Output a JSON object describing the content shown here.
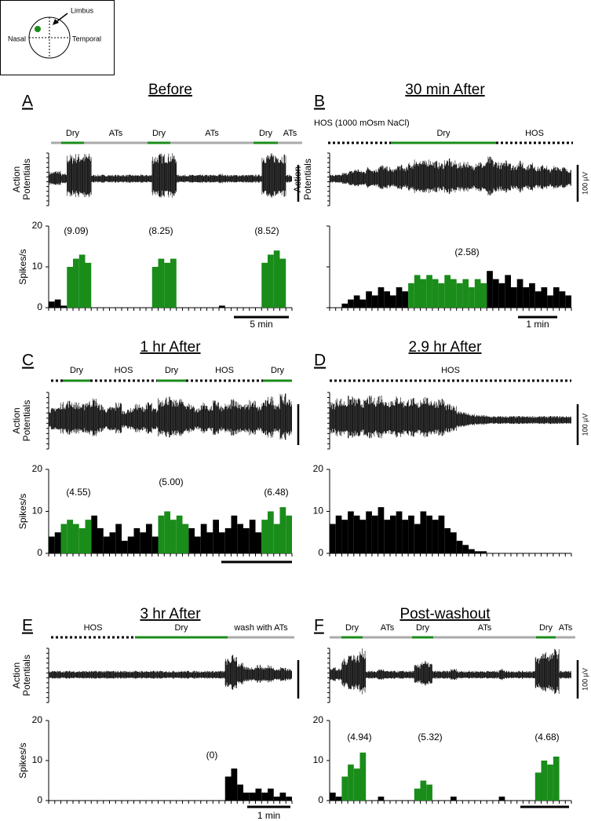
{
  "inset": {
    "labels": [
      "Limbus",
      "Nasal",
      "Temporal"
    ]
  },
  "chart_data": [
    {
      "type": "bar",
      "letter": "A",
      "title": "Before",
      "conditions": [
        {
          "label": null,
          "color": "#aaaaaa",
          "dashed": false
        },
        {
          "label": "Dry",
          "color": "#1a8c1a",
          "dashed": false
        },
        {
          "label": "ATs",
          "color": "#aaaaaa",
          "dashed": false
        },
        {
          "label": "Dry",
          "color": "#1a8c1a",
          "dashed": false
        },
        {
          "label": "ATs",
          "color": "#aaaaaa",
          "dashed": false
        },
        {
          "label": "Dry",
          "color": "#1a8c1a",
          "dashed": false
        },
        {
          "label": "ATs",
          "color": "#aaaaaa",
          "dashed": false
        }
      ],
      "trace_label": [
        "Action",
        "Potentials"
      ],
      "ylabel": "Spikes/s",
      "ylim": [
        0,
        20
      ],
      "yticks": [
        0,
        10,
        20
      ],
      "series": [
        {
          "color": "#000000",
          "values": [
            1.5,
            2,
            0.5,
            null,
            null,
            null,
            null,
            0,
            0,
            0,
            0,
            0,
            0,
            0,
            0,
            0,
            0,
            null,
            null,
            null,
            null,
            0,
            0,
            0,
            0,
            0,
            0,
            0,
            0.5,
            0,
            0,
            0,
            0,
            0,
            0,
            null,
            null,
            null,
            null,
            0
          ]
        },
        {
          "color": "#1a8c1a",
          "values": [
            null,
            null,
            null,
            10,
            12,
            13,
            11,
            null,
            null,
            null,
            null,
            null,
            null,
            null,
            null,
            null,
            null,
            10,
            12,
            11,
            12,
            null,
            null,
            null,
            null,
            null,
            null,
            null,
            null,
            null,
            null,
            null,
            null,
            null,
            null,
            11,
            13,
            14,
            12,
            null
          ]
        }
      ],
      "annotations": [
        "(9.09)",
        "(8.25)",
        "(8.52)"
      ],
      "scale_time": "5 min"
    },
    {
      "type": "bar",
      "letter": "B",
      "title": "30 min After",
      "subtitle": "HOS (1000 mOsm NaCl)",
      "conditions": [
        {
          "label": null,
          "color": "#000000",
          "dashed": true
        },
        {
          "label": "Dry",
          "color": "#1a8c1a",
          "dashed": false
        },
        {
          "label": "HOS",
          "color": "#000000",
          "dashed": true
        }
      ],
      "trace_label": [
        "Action",
        "Potentials"
      ],
      "ylabel": null,
      "ylim": [
        0,
        20
      ],
      "yticks": [
        null,
        null,
        null
      ],
      "series": [
        {
          "color": "#000000",
          "values": [
            0,
            0,
            1,
            2,
            3,
            2,
            4,
            3,
            5,
            4,
            3,
            5,
            4,
            null,
            null,
            null,
            null,
            null,
            null,
            null,
            null,
            null,
            null,
            null,
            null,
            null,
            9,
            7,
            6,
            8,
            5,
            7,
            5,
            6,
            4,
            5,
            3,
            5,
            4,
            3
          ]
        },
        {
          "color": "#1a8c1a",
          "values": [
            null,
            null,
            null,
            null,
            null,
            null,
            null,
            null,
            null,
            null,
            null,
            null,
            null,
            6,
            8,
            7,
            8,
            7,
            6,
            8,
            7,
            6,
            7,
            5,
            7,
            6,
            null,
            null,
            null,
            null,
            null,
            null,
            null,
            null,
            null,
            null,
            null,
            null,
            null,
            null
          ]
        }
      ],
      "annotations": [
        "(2.58)"
      ],
      "scale_time": "1 min",
      "scale_voltage": "100 µV"
    },
    {
      "type": "bar",
      "letter": "C",
      "title": "1 hr After",
      "conditions": [
        {
          "label": null,
          "color": "#000000",
          "dashed": true
        },
        {
          "label": "Dry",
          "color": "#1a8c1a",
          "dashed": false
        },
        {
          "label": "HOS",
          "color": "#000000",
          "dashed": true
        },
        {
          "label": "Dry",
          "color": "#1a8c1a",
          "dashed": false
        },
        {
          "label": "HOS",
          "color": "#000000",
          "dashed": true
        },
        {
          "label": "Dry",
          "color": "#1a8c1a",
          "dashed": false
        }
      ],
      "trace_label": [
        "Action",
        "Potentials"
      ],
      "ylabel": "Spikes/s",
      "ylim": [
        0,
        20
      ],
      "yticks": [
        0,
        10,
        20
      ],
      "series": [
        {
          "color": "#000000",
          "values": [
            4,
            5,
            null,
            null,
            null,
            null,
            null,
            9,
            6,
            4,
            5,
            7,
            3,
            4,
            6,
            5,
            7,
            4,
            null,
            null,
            null,
            null,
            null,
            6,
            4,
            7,
            5,
            8,
            5,
            6,
            9,
            7,
            6,
            8,
            5,
            null,
            null,
            null,
            null,
            null
          ]
        },
        {
          "color": "#1a8c1a",
          "values": [
            null,
            null,
            7,
            8,
            7,
            6,
            8,
            null,
            null,
            null,
            null,
            null,
            null,
            null,
            null,
            null,
            null,
            null,
            9,
            10,
            8,
            9,
            7,
            null,
            null,
            null,
            null,
            null,
            null,
            null,
            null,
            null,
            null,
            null,
            null,
            8,
            10,
            7,
            11,
            9
          ]
        }
      ],
      "annotations": [
        "(4.55)",
        "(5.00)",
        "(6.48)"
      ]
    },
    {
      "type": "bar",
      "letter": "D",
      "title": "2.9 hr After",
      "conditions": [
        {
          "label": "HOS",
          "color": "#000000",
          "dashed": true
        }
      ],
      "trace_label": [
        null,
        null
      ],
      "ylabel": null,
      "ylim": [
        0,
        20
      ],
      "yticks": [
        0,
        10,
        20
      ],
      "series": [
        {
          "color": "#000000",
          "values": [
            7,
            9,
            8,
            10,
            9,
            8,
            10,
            9,
            11,
            8,
            9,
            10,
            8,
            9,
            7,
            10,
            9,
            8,
            9,
            6,
            5,
            3,
            2,
            1,
            0.5,
            0.5,
            0,
            0,
            0,
            0,
            0,
            0,
            0,
            0,
            0,
            0,
            0,
            0,
            0,
            0
          ]
        }
      ],
      "annotations": [],
      "scale_voltage": "100 µV"
    },
    {
      "type": "bar",
      "letter": "E",
      "title": "3 hr After",
      "conditions": [
        {
          "label": "HOS",
          "color": "#000000",
          "dashed": true
        },
        {
          "label": "Dry",
          "color": "#1a8c1a",
          "dashed": false
        },
        {
          "label": "wash with ATs",
          "color": "#aaaaaa",
          "dashed": false
        }
      ],
      "trace_label": [
        "Action",
        "Potentials"
      ],
      "ylabel": "Spikes/s",
      "ylim": [
        0,
        20
      ],
      "yticks": [
        0,
        10,
        20
      ],
      "series": [
        {
          "color": "#000000",
          "values": [
            0,
            0,
            0,
            0,
            0,
            0,
            0,
            0,
            0,
            0,
            0,
            0,
            0,
            0,
            0,
            0,
            0,
            0,
            0,
            0,
            0,
            0,
            0,
            0,
            0,
            0,
            0,
            0,
            0,
            6,
            8,
            4,
            2,
            2,
            3,
            2,
            3,
            1,
            2,
            1
          ]
        }
      ],
      "annotations": [
        "(0)"
      ],
      "scale_time": "1 min"
    },
    {
      "type": "bar",
      "letter": "F",
      "title": "Post-washout",
      "conditions": [
        {
          "label": null,
          "color": "#aaaaaa",
          "dashed": false
        },
        {
          "label": "Dry",
          "color": "#1a8c1a",
          "dashed": false
        },
        {
          "label": "ATs",
          "color": "#aaaaaa",
          "dashed": false
        },
        {
          "label": "Dry",
          "color": "#1a8c1a",
          "dashed": false
        },
        {
          "label": "ATs",
          "color": "#aaaaaa",
          "dashed": false
        },
        {
          "label": "Dry",
          "color": "#1a8c1a",
          "dashed": false
        },
        {
          "label": "ATs",
          "color": "#aaaaaa",
          "dashed": false
        }
      ],
      "trace_label": [
        null,
        null
      ],
      "ylabel": null,
      "ylim": [
        0,
        20
      ],
      "yticks": [
        0,
        10,
        20
      ],
      "series": [
        {
          "color": "#000000",
          "values": [
            2,
            1,
            null,
            null,
            null,
            null,
            0,
            0,
            1,
            0,
            0,
            0,
            0,
            0,
            null,
            null,
            null,
            0,
            0,
            0,
            1,
            0,
            0,
            0,
            0,
            0,
            0,
            0,
            1,
            0,
            0,
            0,
            0,
            0,
            null,
            null,
            null,
            null,
            0,
            0
          ]
        },
        {
          "color": "#1a8c1a",
          "values": [
            null,
            null,
            6,
            9,
            8,
            12,
            null,
            null,
            null,
            null,
            null,
            null,
            null,
            null,
            3,
            5,
            4,
            null,
            null,
            null,
            null,
            null,
            null,
            null,
            null,
            null,
            null,
            null,
            null,
            null,
            null,
            null,
            null,
            null,
            7,
            10,
            9,
            11,
            null,
            null
          ]
        }
      ],
      "annotations": [
        "(4.94)",
        "(5.32)",
        "(4.68)"
      ],
      "scale_voltage": "100 µV"
    }
  ]
}
